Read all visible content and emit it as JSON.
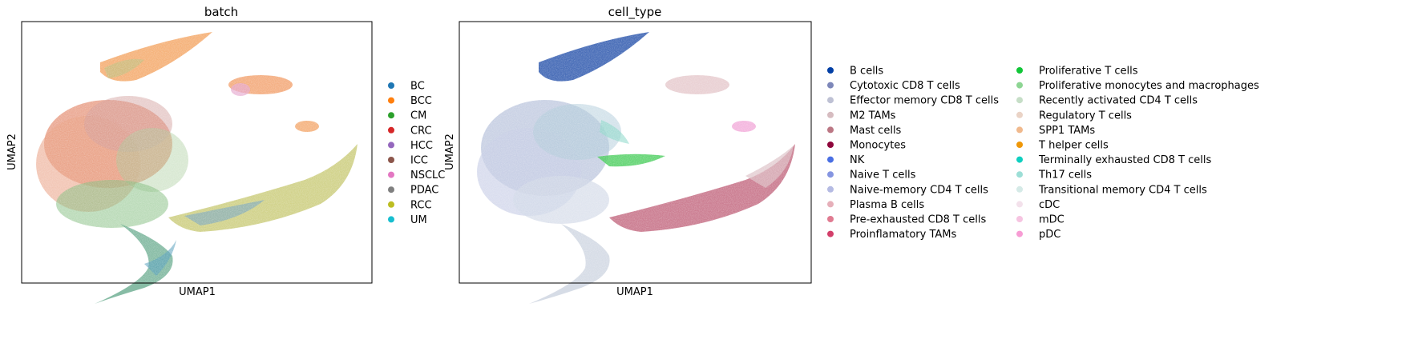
{
  "chart_data": [
    {
      "type": "scatter",
      "title": "batch",
      "xlabel": "UMAP1",
      "ylabel": "UMAP2",
      "grid": false,
      "legend_placement": "right",
      "legend": [
        {
          "label": "BC",
          "color": "#1f77b4"
        },
        {
          "label": "BCC",
          "color": "#ff7f0e"
        },
        {
          "label": "CM",
          "color": "#2ca02c"
        },
        {
          "label": "CRC",
          "color": "#d62728"
        },
        {
          "label": "HCC",
          "color": "#9467bd"
        },
        {
          "label": "ICC",
          "color": "#8c564b"
        },
        {
          "label": "NSCLC",
          "color": "#e377c2"
        },
        {
          "label": "PDAC",
          "color": "#7f7f7f"
        },
        {
          "label": "RCC",
          "color": "#bcbd22"
        },
        {
          "label": "UM",
          "color": "#17becf"
        }
      ]
    },
    {
      "type": "scatter",
      "title": "cell_type",
      "xlabel": "UMAP1",
      "ylabel": "UMAP2",
      "grid": false,
      "legend_placement": "right",
      "legend": [
        {
          "label": "B cells",
          "color": "#023fa5"
        },
        {
          "label": "Cytotoxic CD8 T cells",
          "color": "#7d87b9"
        },
        {
          "label": "Effector memory CD8 T cells",
          "color": "#bec1d4"
        },
        {
          "label": "M2 TAMs",
          "color": "#d6bcc0"
        },
        {
          "label": "Mast cells",
          "color": "#bb7784"
        },
        {
          "label": "Monocytes",
          "color": "#8e063b"
        },
        {
          "label": "NK",
          "color": "#4a6fe3"
        },
        {
          "label": "Naive T cells",
          "color": "#8595e1"
        },
        {
          "label": "Naive-memory CD4 T cells",
          "color": "#b5bbe3"
        },
        {
          "label": "Plasma B cells",
          "color": "#e6afb9"
        },
        {
          "label": "Pre-exhausted CD8 T cells",
          "color": "#e07b91"
        },
        {
          "label": "Proinflamatory TAMs",
          "color": "#d33f6a"
        },
        {
          "label": "Proliferative T cells",
          "color": "#11c638"
        },
        {
          "label": "Proliferative monocytes and macrophages",
          "color": "#8dd593"
        },
        {
          "label": "Recently activated CD4 T cells",
          "color": "#c6dec7"
        },
        {
          "label": "Regulatory T cells",
          "color": "#ead3c6"
        },
        {
          "label": "SPP1 TAMs",
          "color": "#f0b98d"
        },
        {
          "label": "T helper cells",
          "color": "#ef9708"
        },
        {
          "label": "Terminally exhausted CD8 T cells",
          "color": "#0fcfc0"
        },
        {
          "label": "Th17 cells",
          "color": "#9cded6"
        },
        {
          "label": "Transitional memory CD4 T cells",
          "color": "#d5eae7"
        },
        {
          "label": "cDC",
          "color": "#f3e1eb"
        },
        {
          "label": "mDC",
          "color": "#f6c4e1"
        },
        {
          "label": "pDC",
          "color": "#f79cd4"
        }
      ]
    }
  ]
}
